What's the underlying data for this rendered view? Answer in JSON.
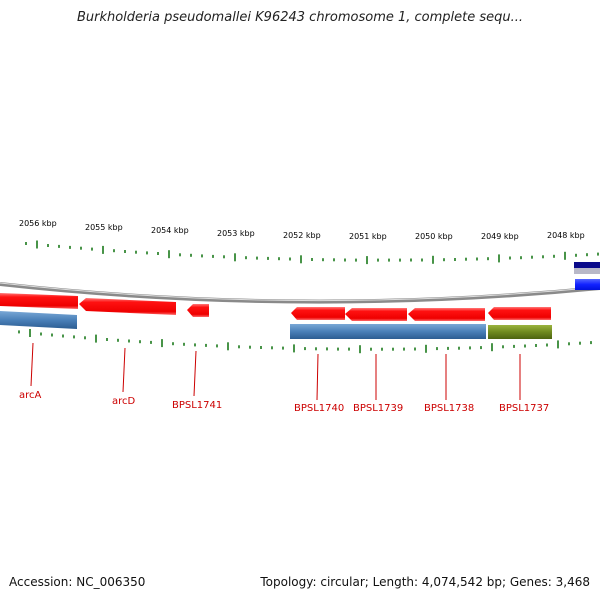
{
  "title": "Burkholderia pseudomallei K96243 chromosome 1, complete sequ...",
  "scale": {
    "labels": [
      "2056 kbp",
      "2055 kbp",
      "2054 kbp",
      "2053 kbp",
      "2052 kbp",
      "2051 kbp",
      "2050 kbp",
      "2049 kbp",
      "2048 kbp"
    ]
  },
  "genes": [
    {
      "label": "arcA",
      "strand": "-"
    },
    {
      "label": "arcD",
      "strand": "-"
    },
    {
      "label": "BPSL1741",
      "strand": "-"
    },
    {
      "label": "BPSL1740",
      "strand": "-"
    },
    {
      "label": "BPSL1739",
      "strand": "-"
    },
    {
      "label": "BPSL1738",
      "strand": "-"
    },
    {
      "label": "BPSL1737",
      "strand": "-"
    }
  ],
  "colors": {
    "cds": "#ff1111",
    "blue_feature": "#4a80b8",
    "green_feature": "#6f8a1f",
    "navy_feature": "#0a0a8a",
    "bright_blue_feature": "#1122ff",
    "tick": "#1a7a1a",
    "backbone": "#8a8a8a",
    "label": "#cc0000"
  },
  "footer": {
    "accession": "Accession: NC_006350",
    "summary": "Topology: circular; Length: 4,074,542 bp; Genes: 3,468"
  }
}
